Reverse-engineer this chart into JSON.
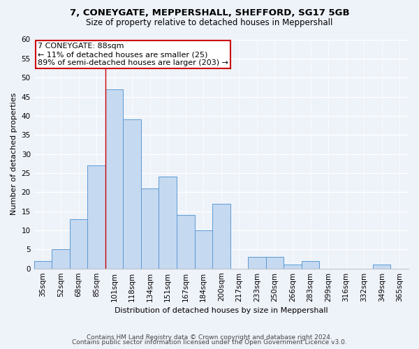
{
  "title1": "7, CONEYGATE, MEPPERSHALL, SHEFFORD, SG17 5GB",
  "title2": "Size of property relative to detached houses in Meppershall",
  "xlabel": "Distribution of detached houses by size in Meppershall",
  "ylabel": "Number of detached properties",
  "categories": [
    "35sqm",
    "52sqm",
    "68sqm",
    "85sqm",
    "101sqm",
    "118sqm",
    "134sqm",
    "151sqm",
    "167sqm",
    "184sqm",
    "200sqm",
    "217sqm",
    "233sqm",
    "250sqm",
    "266sqm",
    "283sqm",
    "299sqm",
    "316sqm",
    "332sqm",
    "349sqm",
    "365sqm"
  ],
  "values": [
    2,
    5,
    13,
    27,
    47,
    39,
    21,
    24,
    14,
    10,
    17,
    0,
    3,
    3,
    1,
    2,
    0,
    0,
    0,
    1,
    0
  ],
  "bar_color": "#c5d9f0",
  "bar_edge_color": "#5b9bd5",
  "annotation_text_line1": "7 CONEYGATE: 88sqm",
  "annotation_text_line2": "← 11% of detached houses are smaller (25)",
  "annotation_text_line3": "89% of semi-detached houses are larger (203) →",
  "annotation_box_color": "#ffffff",
  "annotation_box_edge": "#cc0000",
  "vline_color": "#cc0000",
  "vline_x_index": 3.5,
  "ylim": [
    0,
    60
  ],
  "yticks": [
    0,
    5,
    10,
    15,
    20,
    25,
    30,
    35,
    40,
    45,
    50,
    55,
    60
  ],
  "footer1": "Contains HM Land Registry data © Crown copyright and database right 2024.",
  "footer2": "Contains public sector information licensed under the Open Government Licence v3.0.",
  "bg_color": "#eef2f9",
  "plot_bg_color": "#eef2f9",
  "grid_color": "#ffffff",
  "title1_fontsize": 9.5,
  "title2_fontsize": 8.5,
  "xlabel_fontsize": 8,
  "ylabel_fontsize": 8,
  "tick_fontsize": 7.5,
  "footer_fontsize": 6.5,
  "ann_fontsize": 8
}
